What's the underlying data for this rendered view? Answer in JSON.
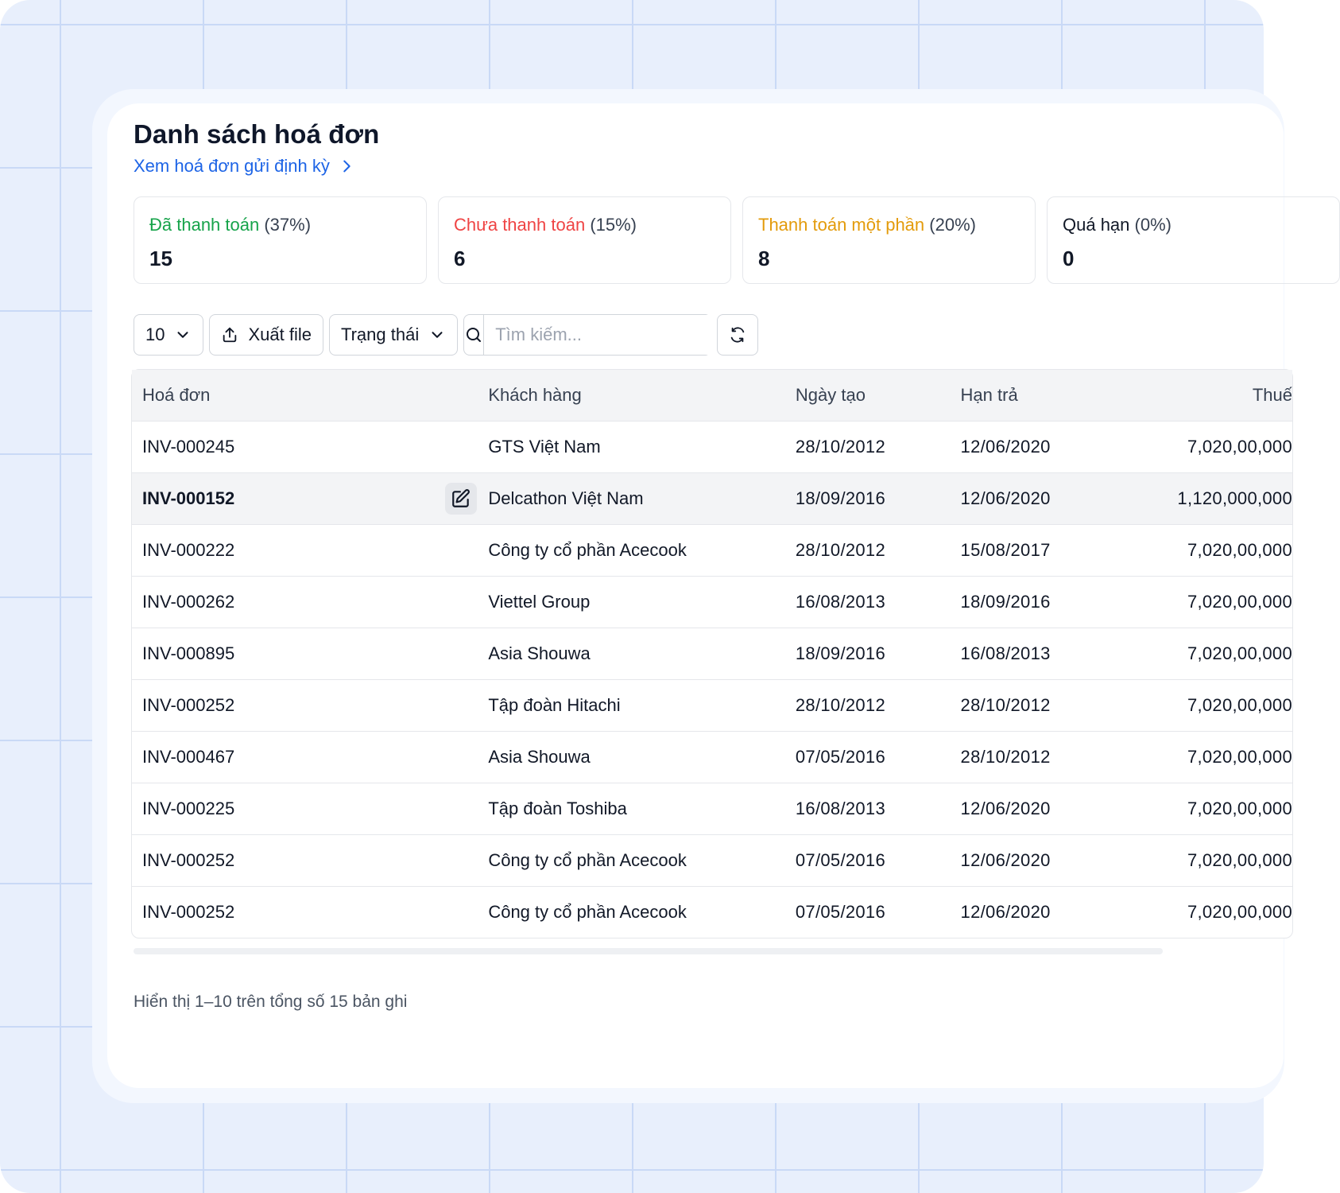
{
  "header": {
    "title": "Danh sách hoá đơn",
    "subtitle_link": "Xem hoá đơn gửi định kỳ"
  },
  "stats": [
    {
      "label": "Đã thanh toán",
      "percent": "(37%)",
      "value": "15",
      "color": "#16a34a"
    },
    {
      "label": "Chưa thanh toán",
      "percent": "(15%)",
      "value": "6",
      "color": "#ef4444"
    },
    {
      "label": "Thanh toán một phần",
      "percent": "(20%)",
      "value": "8",
      "color": "#e39b0b"
    },
    {
      "label": "Quá hạn",
      "percent": "(0%)",
      "value": "0",
      "color": "#111827"
    }
  ],
  "toolbar": {
    "page_size": "10",
    "export_label": "Xuất file",
    "status_label": "Trạng thái",
    "search_placeholder": "Tìm kiếm...",
    "search_value": ""
  },
  "table": {
    "columns": [
      "Hoá đơn",
      "Khách hàng",
      "Ngày tạo",
      "Hạn trả",
      "Thuế"
    ],
    "rows": [
      {
        "invoice": "INV-000245",
        "customer": "GTS Việt Nam",
        "created": "28/10/2012",
        "due": "12/06/2020",
        "tax": "7,020,00,000"
      },
      {
        "invoice": "INV-000152",
        "customer": "Delcathon Việt Nam",
        "created": "18/09/2016",
        "due": "12/06/2020",
        "tax": "1,120,000,000"
      },
      {
        "invoice": "INV-000222",
        "customer": "Công ty cổ phần Acecook",
        "created": "28/10/2012",
        "due": "15/08/2017",
        "tax": "7,020,00,000"
      },
      {
        "invoice": "INV-000262",
        "customer": "Viettel Group",
        "created": "16/08/2013",
        "due": "18/09/2016",
        "tax": "7,020,00,000"
      },
      {
        "invoice": "INV-000895",
        "customer": "Asia Shouwa",
        "created": "18/09/2016",
        "due": "16/08/2013",
        "tax": "7,020,00,000"
      },
      {
        "invoice": "INV-000252",
        "customer": "Tập đoàn Hitachi",
        "created": "28/10/2012",
        "due": "28/10/2012",
        "tax": "7,020,00,000"
      },
      {
        "invoice": "INV-000467",
        "customer": "Asia Shouwa",
        "created": "07/05/2016",
        "due": "28/10/2012",
        "tax": "7,020,00,000"
      },
      {
        "invoice": "INV-000225",
        "customer": "Tập đoàn Toshiba",
        "created": "16/08/2013",
        "due": "12/06/2020",
        "tax": "7,020,00,000"
      },
      {
        "invoice": "INV-000252",
        "customer": "Công ty cổ phần Acecook",
        "created": "07/05/2016",
        "due": "12/06/2020",
        "tax": "7,020,00,000"
      },
      {
        "invoice": "INV-000252",
        "customer": "Công ty cổ phần Acecook",
        "created": "07/05/2016",
        "due": "12/06/2020",
        "tax": "7,020,00,000"
      }
    ]
  },
  "footer": {
    "summary": "Hiển thị 1–10 trên tổng số 15 bản ghi"
  },
  "icons": {
    "subtitle_link": "chevron-right-icon",
    "page_size": "chevron-down-icon",
    "export": "upload-icon",
    "status": "chevron-down-icon",
    "search": "search-icon",
    "refresh": "refresh-icon",
    "row_edit": "edit-icon"
  },
  "colors": {
    "link": "#1d64e6",
    "background": "#e8effc"
  }
}
